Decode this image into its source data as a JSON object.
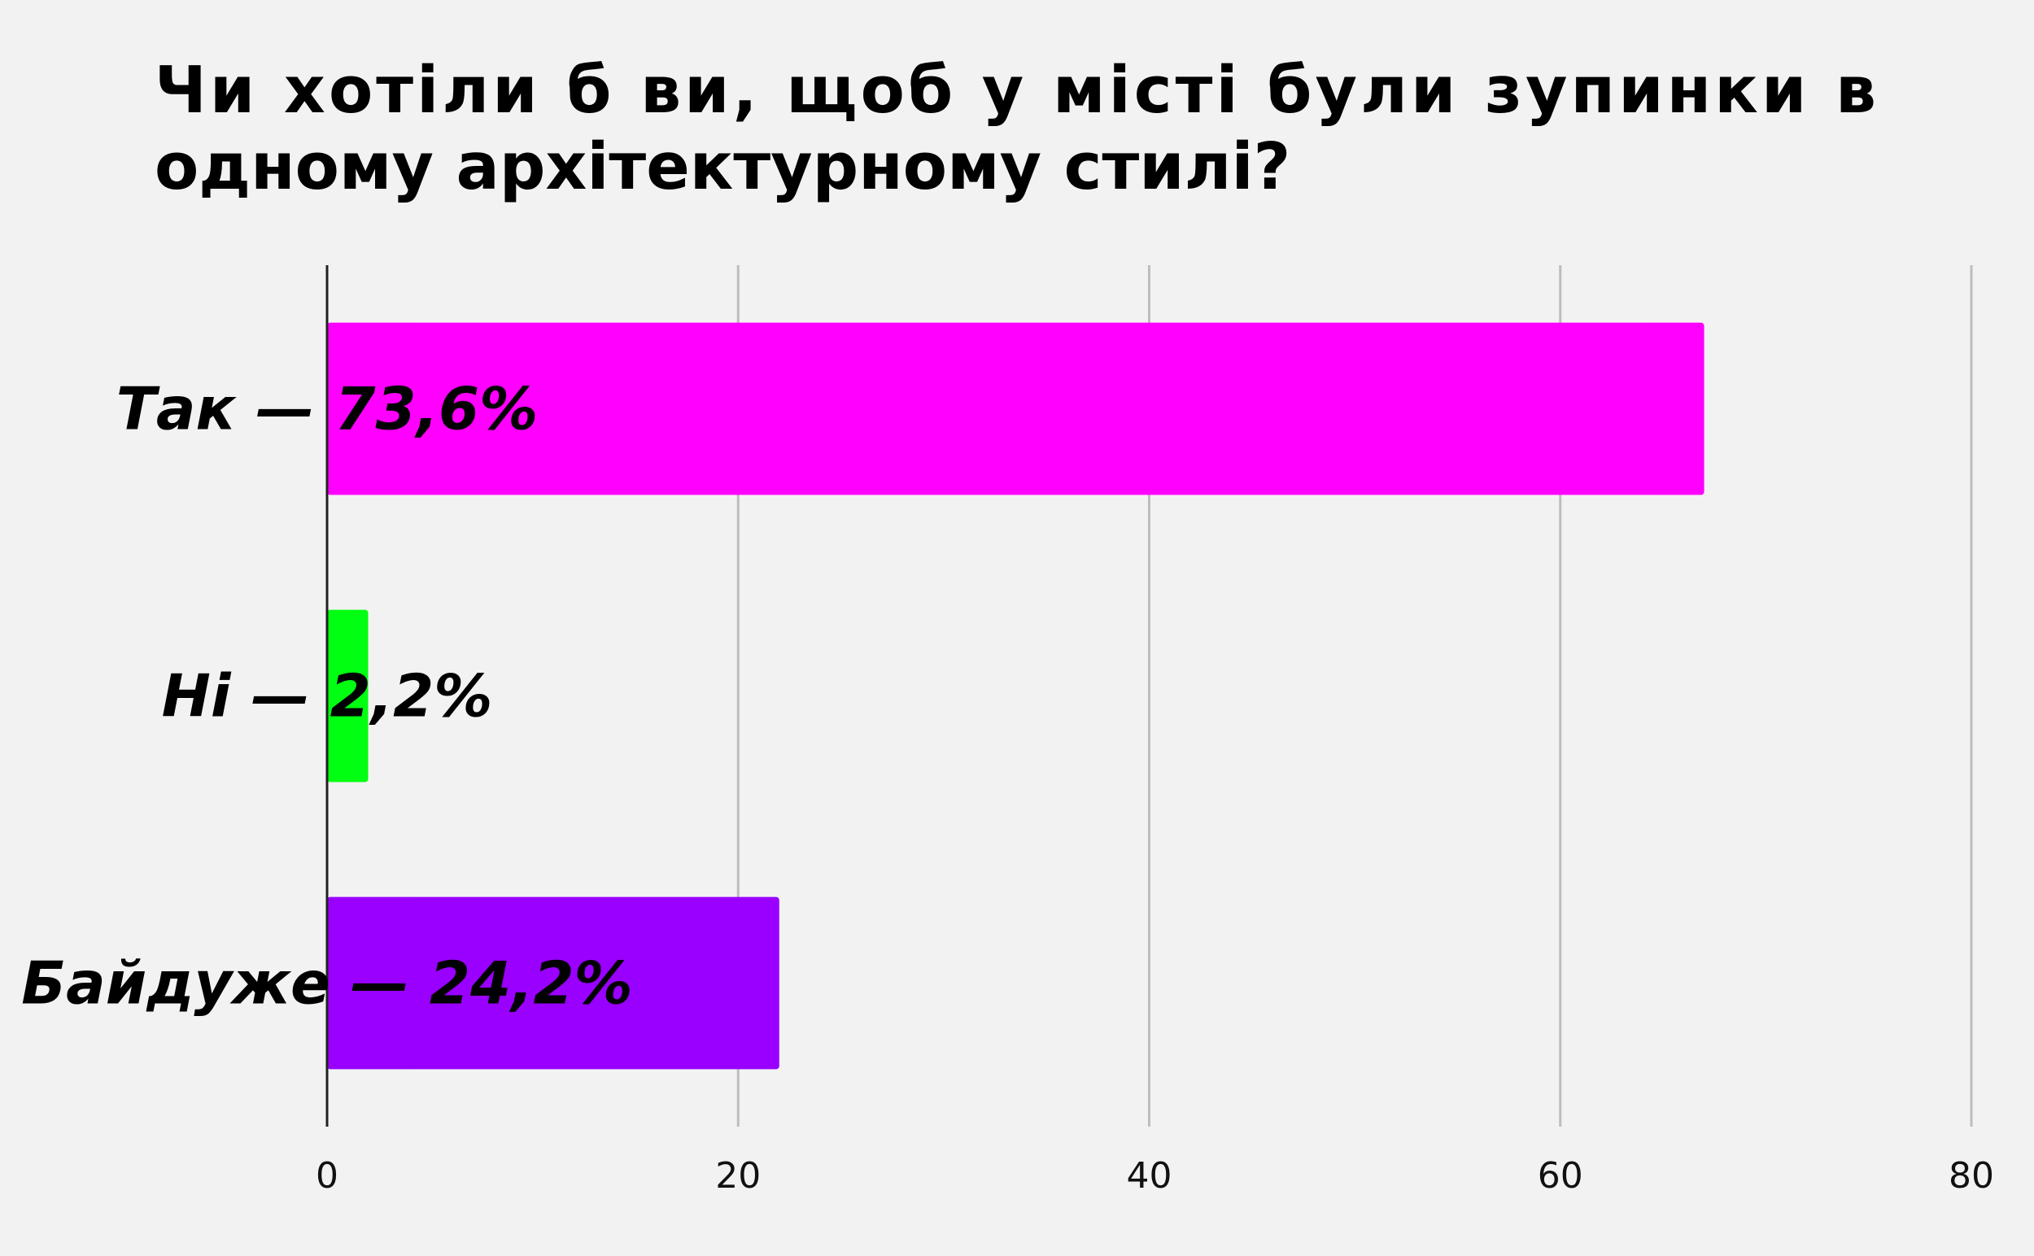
{
  "chart_data": {
    "type": "bar",
    "orientation": "horizontal",
    "title": "Чи хотіли б ви, щоб у місті були зупинки в одному архітектурному стилі?",
    "title_lines": [
      "Чи хотіли б ви, щоб у місті були зупинки в",
      "одному архітектурному стилі?"
    ],
    "categories": [
      "Так",
      "Ні",
      "Байдуже"
    ],
    "values": [
      67,
      2,
      22
    ],
    "labels": [
      "Так — 73,6%",
      "Ні — 2,2%",
      "Байдуже — 24,2%"
    ],
    "colors": [
      "#ff00ff",
      "#00ff10",
      "#9900ff"
    ],
    "xlim": [
      0,
      80
    ],
    "xticks": [
      "0",
      "20",
      "40",
      "60",
      "80"
    ],
    "grid": true,
    "xlabel": "",
    "ylabel": "",
    "legend": "none"
  }
}
